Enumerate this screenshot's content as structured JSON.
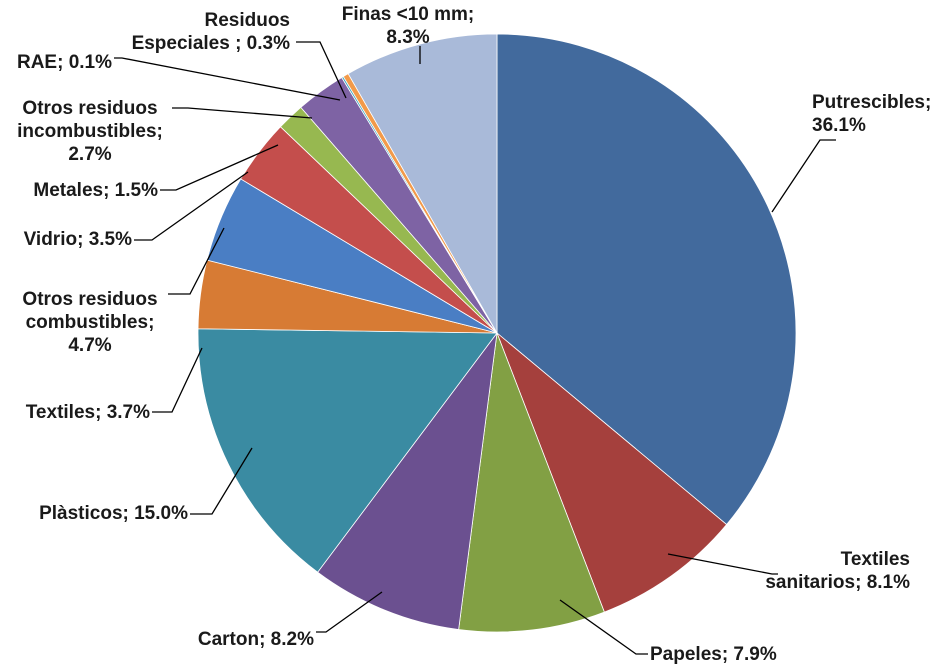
{
  "chart_data": {
    "type": "pie",
    "start_angle_deg": 0,
    "direction": "clockwise",
    "slices": [
      {
        "label": "Putrescibles",
        "value": 36.1,
        "text": [
          "Putrescibles;",
          "36.1%"
        ],
        "color": "#426A9D"
      },
      {
        "label": "Textiles sanitarios",
        "value": 8.1,
        "text": [
          "Textiles",
          "sanitarios; 8.1%"
        ],
        "color": "#A5403D"
      },
      {
        "label": "Papeles",
        "value": 7.9,
        "text": [
          "Papeles; 7.9%"
        ],
        "color": "#82A044"
      },
      {
        "label": "Carton",
        "value": 8.2,
        "text": [
          "Carton; 8.2%"
        ],
        "color": "#6B5090"
      },
      {
        "label": "Plàsticos",
        "value": 15.0,
        "text": [
          "Plàsticos; 15.0%"
        ],
        "color": "#3A8BA2"
      },
      {
        "label": "Textiles",
        "value": 3.7,
        "text": [
          "Textiles; 3.7%"
        ],
        "color": "#D77B34"
      },
      {
        "label": "Otros residuos combustibles",
        "value": 4.7,
        "text": [
          "Otros residuos",
          "combustibles;",
          "4.7%"
        ],
        "color": "#4A7EC4"
      },
      {
        "label": "Vidrio",
        "value": 3.5,
        "text": [
          "Vidrio; 3.5%"
        ],
        "color": "#C44E4C"
      },
      {
        "label": "Metales",
        "value": 1.5,
        "text": [
          "Metales; 1.5%"
        ],
        "color": "#97B850"
      },
      {
        "label": "Otros residuos incombustibles",
        "value": 2.7,
        "text": [
          "Otros residuos",
          "incombustibles;",
          "2.7%"
        ],
        "color": "#7E63A4"
      },
      {
        "label": "RAE",
        "value": 0.1,
        "text": [
          "RAE; 0.1%"
        ],
        "color": "#3FA6C0"
      },
      {
        "label": "Residuos Especiales",
        "value": 0.3,
        "text": [
          "Residuos",
          "Especiales ; 0.3%"
        ],
        "color": "#F29A4A"
      },
      {
        "label": "Finas <10 mm",
        "value": 8.3,
        "text": [
          "Finas <10 mm;",
          "8.3%"
        ],
        "color": "#A9BAD9"
      }
    ]
  }
}
